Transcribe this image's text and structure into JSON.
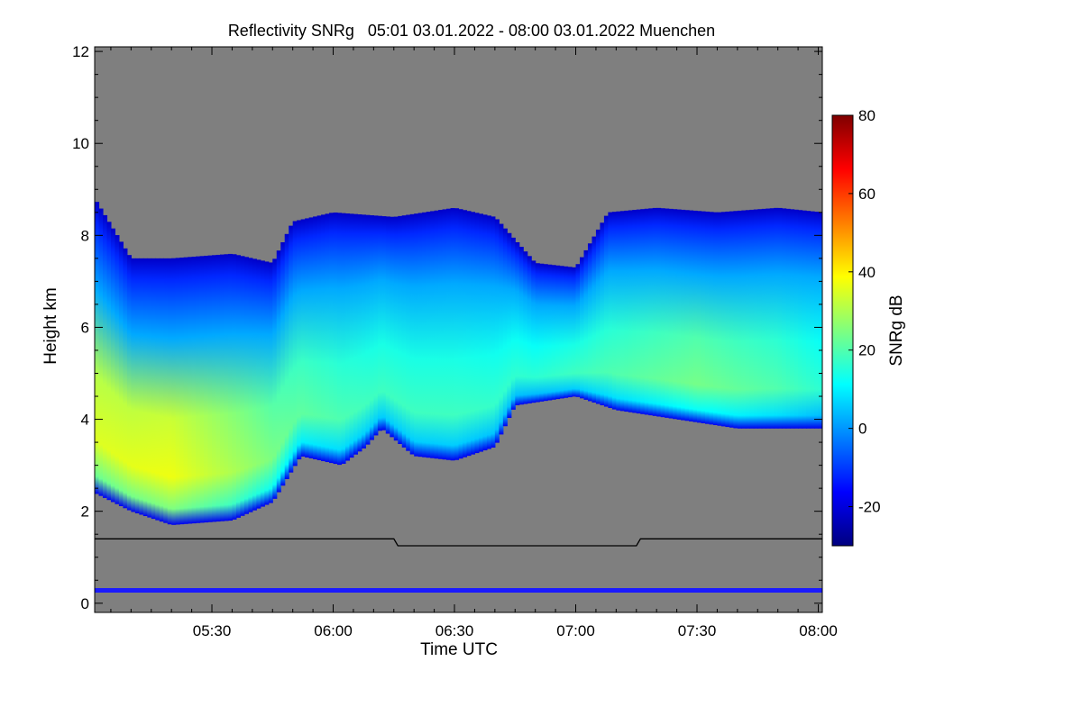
{
  "chart_data": {
    "type": "heatmap",
    "title": "Reflectivity SNRg   05:01 03.01.2022 - 08:00 03.01.2022 Muenchen",
    "xlabel": "Time UTC",
    "ylabel": "Height km",
    "colorbar_label": "SNRg dB",
    "x_range_utc": [
      "05:01",
      "08:00"
    ],
    "x_ticks": [
      "05:30",
      "06:00",
      "06:30",
      "07:00",
      "07:30",
      "08:00"
    ],
    "x_tick_values_min": [
      330,
      360,
      390,
      420,
      450,
      480
    ],
    "x_range_min": [
      301,
      481
    ],
    "ylim": [
      -0.2,
      12.1
    ],
    "y_ticks": [
      0,
      2,
      4,
      6,
      8,
      10,
      12
    ],
    "colorbar_range": [
      -30,
      80
    ],
    "colorbar_ticks": [
      -20,
      0,
      20,
      40,
      60,
      80
    ],
    "colors": {
      "no_signal": "#7f7f7f",
      "colormap": [
        "#00007f",
        "#0000ff",
        "#007fff",
        "#00ffff",
        "#7fff7f",
        "#ffff00",
        "#ff7f00",
        "#ff0000",
        "#7f0000"
      ]
    },
    "cloud_top_km": [
      [
        301,
        8.8
      ],
      [
        310,
        7.5
      ],
      [
        320,
        7.5
      ],
      [
        335,
        7.6
      ],
      [
        345,
        7.4
      ],
      [
        350,
        8.3
      ],
      [
        360,
        8.5
      ],
      [
        375,
        8.4
      ],
      [
        390,
        8.6
      ],
      [
        400,
        8.4
      ],
      [
        410,
        7.4
      ],
      [
        420,
        7.3
      ],
      [
        428,
        8.5
      ],
      [
        440,
        8.6
      ],
      [
        455,
        8.5
      ],
      [
        470,
        8.6
      ],
      [
        481,
        8.5
      ]
    ],
    "cloud_base_km": [
      [
        301,
        2.4
      ],
      [
        310,
        2.0
      ],
      [
        320,
        1.7
      ],
      [
        335,
        1.8
      ],
      [
        345,
        2.2
      ],
      [
        352,
        3.2
      ],
      [
        362,
        3.0
      ],
      [
        368,
        3.4
      ],
      [
        372,
        3.8
      ],
      [
        380,
        3.2
      ],
      [
        390,
        3.1
      ],
      [
        400,
        3.4
      ],
      [
        405,
        4.3
      ],
      [
        420,
        4.5
      ],
      [
        430,
        4.2
      ],
      [
        445,
        4.0
      ],
      [
        460,
        3.8
      ],
      [
        481,
        3.8
      ]
    ],
    "core_snr_db": [
      [
        301,
        35
      ],
      [
        320,
        37
      ],
      [
        335,
        30
      ],
      [
        350,
        22
      ],
      [
        370,
        18
      ],
      [
        390,
        18
      ],
      [
        410,
        16
      ],
      [
        430,
        20
      ],
      [
        450,
        24
      ],
      [
        470,
        20
      ],
      [
        481,
        16
      ]
    ],
    "reference_line_km": [
      [
        301,
        1.4
      ],
      [
        375,
        1.4
      ],
      [
        376,
        1.25
      ],
      [
        435,
        1.25
      ],
      [
        436,
        1.4
      ],
      [
        481,
        1.4
      ]
    ],
    "near_surface_band_km": 0.28
  }
}
